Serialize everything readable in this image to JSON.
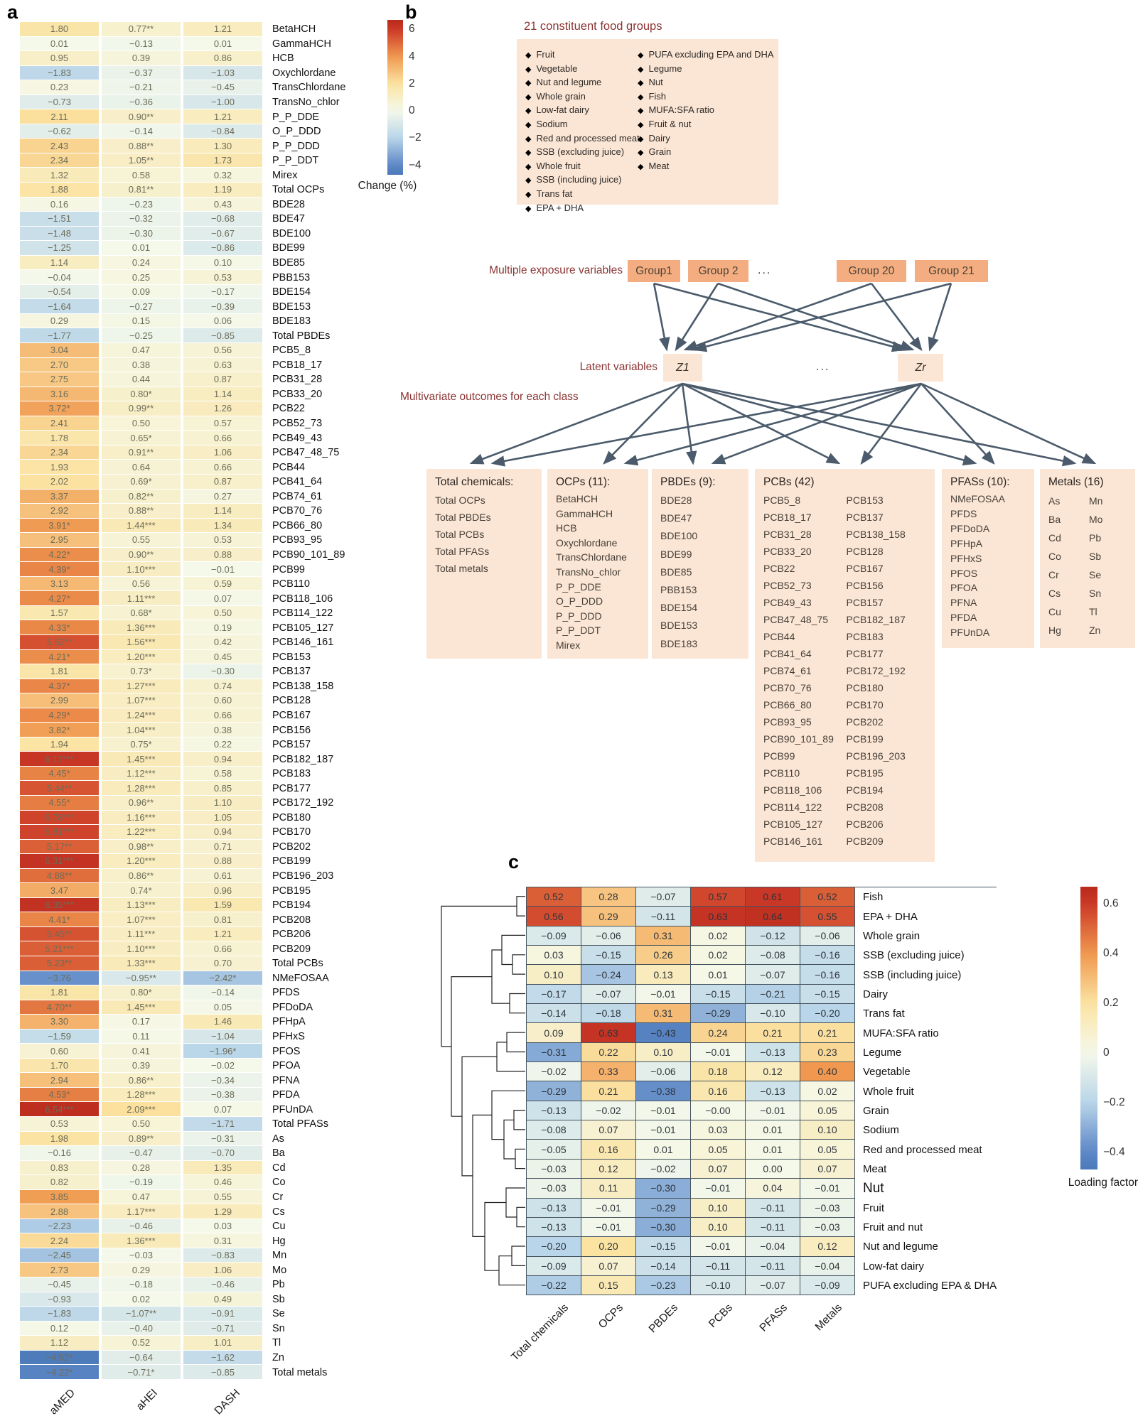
{
  "figure": {
    "panel_labels": {
      "a": "a",
      "b": "b",
      "c": "c"
    }
  },
  "chart_data": [
    {
      "panel": "a",
      "type": "heatmap",
      "columns": [
        "aMED",
        "aHEI",
        "DASH"
      ],
      "colorbar": {
        "label": "Change (%)",
        "ticks": [
          6,
          4,
          2,
          0,
          -2,
          -4
        ],
        "range": [
          -4,
          6
        ]
      },
      "rows": [
        "BetaHCH",
        "GammaHCH",
        "HCB",
        "Oxychlordane",
        "TransChlordane",
        "TransNo_chlor",
        "P_P_DDE",
        "O_P_DDD",
        "P_P_DDD",
        "P_P_DDT",
        "Mirex",
        "Total OCPs",
        "BDE28",
        "BDE47",
        "BDE100",
        "BDE99",
        "BDE85",
        "PBB153",
        "BDE154",
        "BDE153",
        "BDE183",
        "Total PBDEs",
        "PCB5_8",
        "PCB18_17",
        "PCB31_28",
        "PCB33_20",
        "PCB22",
        "PCB52_73",
        "PCB49_43",
        "PCB47_48_75",
        "PCB44",
        "PCB41_64",
        "PCB74_61",
        "PCB70_76",
        "PCB66_80",
        "PCB93_95",
        "PCB90_101_89",
        "PCB99",
        "PCB110",
        "PCB118_106",
        "PCB114_122",
        "PCB105_127",
        "PCB146_161",
        "PCB153",
        "PCB137",
        "PCB138_158",
        "PCB128",
        "PCB167",
        "PCB156",
        "PCB157",
        "PCB182_187",
        "PCB183",
        "PCB177",
        "PCB172_192",
        "PCB180",
        "PCB170",
        "PCB202",
        "PCB199",
        "PCB196_203",
        "PCB195",
        "PCB194",
        "PCB208",
        "PCB206",
        "PCB209",
        "Total PCBs",
        "NMeFOSAA",
        "PFDS",
        "PFDoDA",
        "PFHpA",
        "PFHxS",
        "PFOS",
        "PFOA",
        "PFNA",
        "PFDA",
        "PFUnDA",
        "Total PFASs",
        "As",
        "Ba",
        "Cd",
        "Co",
        "Cr",
        "Cs",
        "Cu",
        "Hg",
        "Mn",
        "Mo",
        "Pb",
        "Sb",
        "Se",
        "Sn",
        "Tl",
        "Zn",
        "Total metals"
      ],
      "cells": [
        [
          "1.80",
          "0.77**",
          "1.21"
        ],
        [
          "0.01",
          "-0.13",
          "0.01"
        ],
        [
          "0.95",
          "0.39",
          "0.86"
        ],
        [
          "-1.83",
          "-0.37",
          "-1.03"
        ],
        [
          "0.23",
          "-0.21",
          "-0.45"
        ],
        [
          "-0.73",
          "-0.36",
          "-1.00"
        ],
        [
          "2.11",
          "0.90**",
          "1.21"
        ],
        [
          "-0.62",
          "-0.14",
          "-0.84"
        ],
        [
          "2.43",
          "0.88**",
          "1.30"
        ],
        [
          "2.34",
          "1.05**",
          "1.73"
        ],
        [
          "1.32",
          "0.58",
          "0.32"
        ],
        [
          "1.88",
          "0.81**",
          "1.19"
        ],
        [
          "0.16",
          "-0.23",
          "0.43"
        ],
        [
          "-1.51",
          "-0.32",
          "-0.68"
        ],
        [
          "-1.48",
          "-0.30",
          "-0.67"
        ],
        [
          "-1.25",
          "0.01",
          "-0.86"
        ],
        [
          "1.14",
          "0.24",
          "0.10"
        ],
        [
          "-0.04",
          "0.25",
          "0.53"
        ],
        [
          "-0.54",
          "0.09",
          "-0.17"
        ],
        [
          "-1.64",
          "-0.27",
          "-0.39"
        ],
        [
          "0.29",
          "0.15",
          "0.06"
        ],
        [
          "-1.77",
          "-0.25",
          "-0.85"
        ],
        [
          "3.04",
          "0.47",
          "0.56"
        ],
        [
          "2.70",
          "0.38",
          "0.63"
        ],
        [
          "2.75",
          "0.44",
          "0.87"
        ],
        [
          "3.16",
          "0.80*",
          "1.14"
        ],
        [
          "3.72*",
          "0.99**",
          "1.26"
        ],
        [
          "2.41",
          "0.50",
          "0.57"
        ],
        [
          "1.78",
          "0.65*",
          "0.66"
        ],
        [
          "2.34",
          "0.91**",
          "1.06"
        ],
        [
          "1.93",
          "0.64",
          "0.66"
        ],
        [
          "2.02",
          "0.69*",
          "0.87"
        ],
        [
          "3.37",
          "0.82**",
          "0.27"
        ],
        [
          "2.92",
          "0.88**",
          "1.14"
        ],
        [
          "3.91*",
          "1.44***",
          "1.34"
        ],
        [
          "2.95",
          "0.55",
          "0.53"
        ],
        [
          "4.22*",
          "0.90**",
          "0.88"
        ],
        [
          "4.39*",
          "1.10***",
          "-0.01"
        ],
        [
          "3.13",
          "0.56",
          "0.59"
        ],
        [
          "4.27*",
          "1.11***",
          "0.07"
        ],
        [
          "1.57",
          "0.68*",
          "0.50"
        ],
        [
          "4.33*",
          "1.36***",
          "0.19"
        ],
        [
          "5.52**",
          "1.56***",
          "0.42"
        ],
        [
          "4.21*",
          "1.20***",
          "0.45"
        ],
        [
          "1.81",
          "0.73*",
          "-0.30"
        ],
        [
          "4.37*",
          "1.27***",
          "0.74"
        ],
        [
          "2.99",
          "1.07***",
          "0.60"
        ],
        [
          "4.29*",
          "1.24***",
          "0.66"
        ],
        [
          "3.82*",
          "1.04***",
          "0.38"
        ],
        [
          "1.94",
          "0.75*",
          "0.22"
        ],
        [
          "6.17***",
          "1.45***",
          "0.94"
        ],
        [
          "4.45*",
          "1.12***",
          "0.58"
        ],
        [
          "5.44**",
          "1.28***",
          "0.85"
        ],
        [
          "4.55*",
          "0.96**",
          "1.10"
        ],
        [
          "5.78***",
          "1.16***",
          "1.05"
        ],
        [
          "5.81***",
          "1.22***",
          "0.94"
        ],
        [
          "5.17**",
          "0.98**",
          "0.71"
        ],
        [
          "6.31***",
          "1.20***",
          "0.88"
        ],
        [
          "4.88**",
          "0.86**",
          "0.61"
        ],
        [
          "3.47",
          "0.74*",
          "0.96"
        ],
        [
          "6.35***",
          "1.13***",
          "1.59"
        ],
        [
          "4.41*",
          "1.07***",
          "0.81"
        ],
        [
          "5.45**",
          "1.11***",
          "1.21"
        ],
        [
          "5.21***",
          "1.10***",
          "0.66"
        ],
        [
          "5.23**",
          "1.33***",
          "0.70"
        ],
        [
          "-3.76",
          "-0.95**",
          "-2.42*"
        ],
        [
          "1.81",
          "0.80*",
          "-0.14"
        ],
        [
          "4.70**",
          "1.45***",
          "0.05"
        ],
        [
          "3.30",
          "0.17",
          "1.46"
        ],
        [
          "-1.59",
          "0.11",
          "-1.04"
        ],
        [
          "0.60",
          "0.41",
          "-1.96*"
        ],
        [
          "1.70",
          "0.39",
          "-0.02"
        ],
        [
          "2.94",
          "0.86**",
          "-0.34"
        ],
        [
          "4.53*",
          "1.28***",
          "-0.38"
        ],
        [
          "6.54***",
          "2.09***",
          "0.07"
        ],
        [
          "0.53",
          "0.50",
          "-1.71"
        ],
        [
          "1.98",
          "0.89**",
          "-0.31"
        ],
        [
          "-0.16",
          "-0.47",
          "-0.70"
        ],
        [
          "0.83",
          "0.28",
          "1.35"
        ],
        [
          "0.82",
          "-0.19",
          "0.46"
        ],
        [
          "3.85",
          "0.47",
          "0.55"
        ],
        [
          "2.88",
          "1.17***",
          "1.29"
        ],
        [
          "-2.23",
          "-0.46",
          "0.03"
        ],
        [
          "2.24",
          "1.36***",
          "0.31"
        ],
        [
          "-2.45",
          "-0.03",
          "-0.83"
        ],
        [
          "2.73",
          "0.29",
          "1.06"
        ],
        [
          "-0.45",
          "-0.18",
          "-0.46"
        ],
        [
          "-0.93",
          "0.02",
          "0.49"
        ],
        [
          "-1.83",
          "-1.07**",
          "-0.91"
        ],
        [
          "0.12",
          "-0.40",
          "-0.71"
        ],
        [
          "1.12",
          "0.52",
          "1.01"
        ],
        [
          "-4.62*",
          "-0.64",
          "-1.62"
        ],
        [
          "-4.22*",
          "-0.71*",
          "-0.85"
        ]
      ]
    },
    {
      "panel": "c",
      "type": "heatmap",
      "columns": [
        "Total chemicals",
        "OCPs",
        "PBDEs",
        "PCBs",
        "PFASs",
        "Metals"
      ],
      "colorbar": {
        "label": "Loading factor",
        "ticks": [
          0.6,
          0.4,
          0.2,
          0,
          -0.2,
          -0.4
        ],
        "range": [
          -0.4,
          0.6
        ]
      },
      "emphasized_row": "Nut",
      "rows": [
        "Fish",
        "EPA + DHA",
        "Whole grain",
        "SSB (excluding juice)",
        "SSB (including juice)",
        "Dairy",
        "Trans fat",
        "MUFA:SFA ratio",
        "Legume",
        "Vegetable",
        "Whole fruit",
        "Grain",
        "Sodium",
        "Red and processed meat",
        "Meat",
        "Nut",
        "Fruit",
        "Fruit and nut",
        "Nut and legume",
        "Low-fat dairy",
        "PUFA excluding EPA & DHA"
      ],
      "cells": [
        [
          "0.52",
          "0.28",
          "-0.07",
          "0.57",
          "0.61",
          "0.52"
        ],
        [
          "0.56",
          "0.29",
          "-0.11",
          "0.63",
          "0.64",
          "0.55"
        ],
        [
          "-0.09",
          "-0.06",
          "0.31",
          "0.02",
          "-0.12",
          "-0.06"
        ],
        [
          "0.03",
          "-0.15",
          "0.26",
          "0.02",
          "-0.08",
          "-0.16"
        ],
        [
          "0.10",
          "-0.24",
          "0.13",
          "0.01",
          "-0.07",
          "-0.16"
        ],
        [
          "-0.17",
          "-0.07",
          "-0.01",
          "-0.15",
          "-0.21",
          "-0.15"
        ],
        [
          "-0.14",
          "-0.18",
          "0.31",
          "-0.29",
          "-0.10",
          "-0.20"
        ],
        [
          "0.09",
          "0.63",
          "-0.43",
          "0.24",
          "0.21",
          "0.21"
        ],
        [
          "-0.31",
          "0.22",
          "0.10",
          "-0.01",
          "-0.13",
          "0.23"
        ],
        [
          "-0.02",
          "0.33",
          "-0.06",
          "0.18",
          "0.12",
          "0.40"
        ],
        [
          "-0.29",
          "0.21",
          "-0.38",
          "0.16",
          "-0.13",
          "0.02"
        ],
        [
          "-0.13",
          "-0.02",
          "-0.01",
          "-0.00",
          "-0.01",
          "0.05"
        ],
        [
          "-0.08",
          "0.07",
          "-0.01",
          "0.03",
          "0.01",
          "0.10"
        ],
        [
          "-0.05",
          "0.16",
          "0.01",
          "0.05",
          "0.01",
          "0.05"
        ],
        [
          "-0.03",
          "0.12",
          "-0.02",
          "0.07",
          "0.00",
          "0.07"
        ],
        [
          "-0.03",
          "0.11",
          "-0.30",
          "-0.01",
          "0.04",
          "-0.01"
        ],
        [
          "-0.13",
          "-0.01",
          "-0.29",
          "0.10",
          "-0.11",
          "-0.03"
        ],
        [
          "-0.13",
          "-0.01",
          "-0.30",
          "0.10",
          "-0.11",
          "-0.03"
        ],
        [
          "-0.20",
          "0.20",
          "-0.15",
          "-0.01",
          "-0.04",
          "0.12"
        ],
        [
          "-0.09",
          "0.07",
          "-0.14",
          "-0.11",
          "-0.11",
          "-0.04"
        ],
        [
          "-0.22",
          "0.15",
          "-0.23",
          "-0.10",
          "-0.07",
          "-0.09"
        ]
      ]
    }
  ],
  "panel_b": {
    "food_groups": {
      "title": "21 constituent food groups",
      "left": [
        "Fruit",
        "Vegetable",
        "Nut and legume",
        "Whole grain",
        "Low-fat dairy",
        "Sodium",
        "Red and processed meat",
        "SSB (excluding juice)",
        "Whole fruit",
        "SSB (including juice)",
        "Trans fat",
        "EPA + DHA"
      ],
      "right": [
        "PUFA excluding EPA and DHA",
        "Legume",
        "Nut",
        "Fish",
        "MUFA:SFA ratio",
        "Fruit & nut",
        "Dairy",
        "Grain",
        "Meat"
      ]
    },
    "exposure_label": "Multiple exposure variables",
    "group_boxes": [
      "Group1",
      "Group 2",
      "Group 20",
      "Group 21"
    ],
    "ellipsis": "...",
    "latent_label": "Latent variables",
    "latent_boxes": [
      "Z1",
      "Zr"
    ],
    "outcomes_label": "Multivariate outcomes for each class",
    "outcome_boxes": [
      {
        "title": "Total chemicals:",
        "columns": [
          [
            "Total OCPs",
            "Total PBDEs",
            "Total PCBs",
            "Total PFASs",
            "Total metals"
          ]
        ]
      },
      {
        "title": "OCPs (11):",
        "columns": [
          [
            "BetaHCH",
            "GammaHCH",
            "HCB",
            "Oxychlordane",
            "TransChlordane",
            "TransNo_chlor",
            "P_P_DDE",
            "O_P_DDD",
            "P_P_DDD",
            "P_P_DDT",
            "Mirex"
          ]
        ]
      },
      {
        "title": "PBDEs (9):",
        "columns": [
          [
            "BDE28",
            "BDE47",
            "BDE100",
            "BDE99",
            "BDE85",
            "PBB153",
            "BDE154",
            "BDE153",
            "BDE183"
          ]
        ]
      },
      {
        "title": "PCBs (42)",
        "columns": [
          [
            "PCB5_8",
            "PCB18_17",
            "PCB31_28",
            "PCB33_20",
            "PCB22",
            "PCB52_73",
            "PCB49_43",
            "PCB47_48_75",
            "PCB44",
            "PCB41_64",
            "PCB74_61",
            "PCB70_76",
            "PCB66_80",
            "PCB93_95",
            "PCB90_101_89",
            "PCB99",
            "PCB110",
            "PCB118_106",
            "PCB114_122",
            "PCB105_127",
            "PCB146_161"
          ],
          [
            "PCB153",
            "PCB137",
            "PCB138_158",
            "PCB128",
            "PCB167",
            "PCB156",
            "PCB157",
            "PCB182_187",
            "PCB183",
            "PCB177",
            "PCB172_192",
            "PCB180",
            "PCB170",
            "PCB202",
            "PCB199",
            "PCB196_203",
            "PCB195",
            "PCB194",
            "PCB208",
            "PCB206",
            "PCB209"
          ]
        ]
      },
      {
        "title": "PFASs (10):",
        "columns": [
          [
            "NMeFOSAA",
            "PFDS",
            "PFDoDA",
            "PFHpA",
            "PFHxS",
            "PFOS",
            "PFOA",
            "PFNA",
            "PFDA",
            "PFUnDA"
          ]
        ]
      },
      {
        "title": "Metals (16)",
        "columns": [
          [
            "As",
            "Ba",
            "Cd",
            "Co",
            "Cr",
            "Cs",
            "Cu",
            "Hg"
          ],
          [
            "Mn",
            "Mo",
            "Pb",
            "Sb",
            "Se",
            "Sn",
            "Tl",
            "Zn"
          ]
        ]
      }
    ]
  }
}
